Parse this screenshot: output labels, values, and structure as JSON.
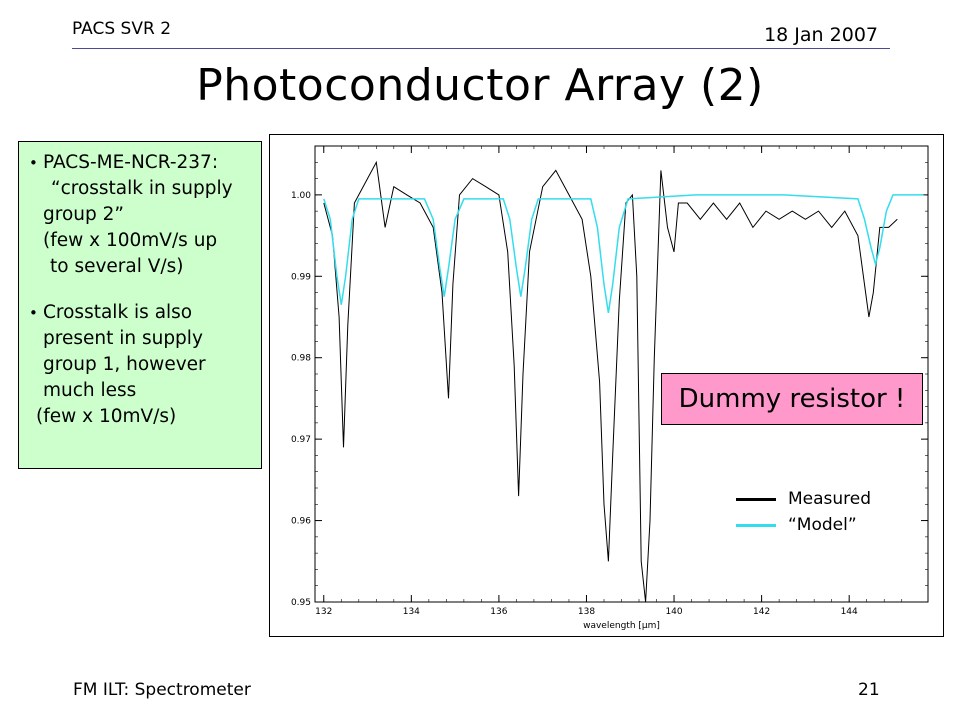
{
  "header": {
    "left": "PACS SVR 2",
    "right": "18 Jan 2007"
  },
  "title": "Photoconductor Array (2)",
  "note": {
    "bullet1": [
      "PACS-ME-NCR-237:",
      "“crosstalk in supply",
      "group 2”",
      "(few x 100mV/s up",
      "to several V/s)"
    ],
    "bullet2": [
      "Crosstalk is also",
      "present in supply",
      "group 1, however",
      "much less",
      "(few x 10mV/s)"
    ]
  },
  "callout": "Dummy resistor !",
  "legend": {
    "measured": {
      "label": "Measured",
      "color": "#000000"
    },
    "model": {
      "label": "“Model”",
      "color": "#33ddee"
    }
  },
  "footer": {
    "left": "FM ILT: Spectrometer",
    "page": "21"
  },
  "chart_data": {
    "type": "line",
    "xlabel": "wavelength [μm]",
    "ylabel": "",
    "xlim": [
      131.8,
      145.8
    ],
    "ylim": [
      0.95,
      1.006
    ],
    "xticks": [
      "132",
      "134",
      "136",
      "138",
      "140",
      "142",
      "144"
    ],
    "yticks": [
      "0.95",
      "0.96",
      "0.97",
      "0.98",
      "0.99",
      "1.00"
    ],
    "series": [
      {
        "name": "Measured",
        "color": "#000000",
        "points": [
          [
            132.0,
            0.999
          ],
          [
            132.2,
            0.995
          ],
          [
            132.35,
            0.985
          ],
          [
            132.45,
            0.969
          ],
          [
            132.55,
            0.984
          ],
          [
            132.7,
            0.999
          ],
          [
            133.0,
            1.002
          ],
          [
            133.2,
            1.004
          ],
          [
            133.4,
            0.996
          ],
          [
            133.6,
            1.001
          ],
          [
            133.9,
            1.0
          ],
          [
            134.2,
            0.999
          ],
          [
            134.5,
            0.996
          ],
          [
            134.7,
            0.988
          ],
          [
            134.85,
            0.975
          ],
          [
            134.95,
            0.989
          ],
          [
            135.1,
            1.0
          ],
          [
            135.4,
            1.002
          ],
          [
            135.7,
            1.001
          ],
          [
            136.0,
            1.0
          ],
          [
            136.2,
            0.993
          ],
          [
            136.35,
            0.979
          ],
          [
            136.45,
            0.963
          ],
          [
            136.55,
            0.978
          ],
          [
            136.7,
            0.993
          ],
          [
            137.0,
            1.001
          ],
          [
            137.3,
            1.003
          ],
          [
            137.6,
            1.0
          ],
          [
            137.9,
            0.997
          ],
          [
            138.1,
            0.99
          ],
          [
            138.3,
            0.977
          ],
          [
            138.4,
            0.962
          ],
          [
            138.5,
            0.955
          ],
          [
            138.6,
            0.968
          ],
          [
            138.75,
            0.987
          ],
          [
            138.9,
            0.999
          ],
          [
            139.05,
            1.0
          ],
          [
            139.15,
            0.99
          ],
          [
            139.25,
            0.955
          ],
          [
            139.35,
            0.95
          ],
          [
            139.45,
            0.96
          ],
          [
            139.55,
            0.98
          ],
          [
            139.7,
            1.003
          ],
          [
            139.85,
            0.996
          ],
          [
            140.0,
            0.993
          ],
          [
            140.1,
            0.999
          ],
          [
            140.3,
            0.999
          ],
          [
            140.6,
            0.997
          ],
          [
            140.9,
            0.999
          ],
          [
            141.2,
            0.997
          ],
          [
            141.5,
            0.999
          ],
          [
            141.8,
            0.996
          ],
          [
            142.1,
            0.998
          ],
          [
            142.4,
            0.997
          ],
          [
            142.7,
            0.998
          ],
          [
            143.0,
            0.997
          ],
          [
            143.3,
            0.998
          ],
          [
            143.6,
            0.996
          ],
          [
            143.9,
            0.998
          ],
          [
            144.2,
            0.995
          ],
          [
            144.45,
            0.985
          ],
          [
            144.55,
            0.988
          ],
          [
            144.7,
            0.996
          ],
          [
            144.9,
            0.996
          ],
          [
            145.1,
            0.997
          ]
        ]
      },
      {
        "name": "“Model”",
        "color": "#33ddee",
        "points": [
          [
            132.0,
            0.9995
          ],
          [
            132.15,
            0.997
          ],
          [
            132.3,
            0.99
          ],
          [
            132.4,
            0.9865
          ],
          [
            132.5,
            0.99
          ],
          [
            132.65,
            0.997
          ],
          [
            132.8,
            0.9995
          ],
          [
            134.3,
            0.9995
          ],
          [
            134.5,
            0.997
          ],
          [
            134.65,
            0.991
          ],
          [
            134.75,
            0.9875
          ],
          [
            134.85,
            0.991
          ],
          [
            135.0,
            0.997
          ],
          [
            135.2,
            0.9995
          ],
          [
            136.1,
            0.9995
          ],
          [
            136.25,
            0.997
          ],
          [
            136.4,
            0.991
          ],
          [
            136.5,
            0.9875
          ],
          [
            136.6,
            0.991
          ],
          [
            136.75,
            0.997
          ],
          [
            136.9,
            0.9995
          ],
          [
            138.1,
            0.9995
          ],
          [
            138.25,
            0.996
          ],
          [
            138.4,
            0.989
          ],
          [
            138.5,
            0.9855
          ],
          [
            138.6,
            0.989
          ],
          [
            138.75,
            0.996
          ],
          [
            138.95,
            0.9995
          ],
          [
            140.5,
            1.0
          ],
          [
            142.5,
            1.0
          ],
          [
            144.2,
            0.9995
          ],
          [
            144.35,
            0.997
          ],
          [
            144.5,
            0.9935
          ],
          [
            144.6,
            0.9915
          ],
          [
            144.7,
            0.9935
          ],
          [
            144.85,
            0.998
          ],
          [
            145.0,
            1.0
          ],
          [
            145.7,
            1.0
          ]
        ]
      }
    ]
  }
}
